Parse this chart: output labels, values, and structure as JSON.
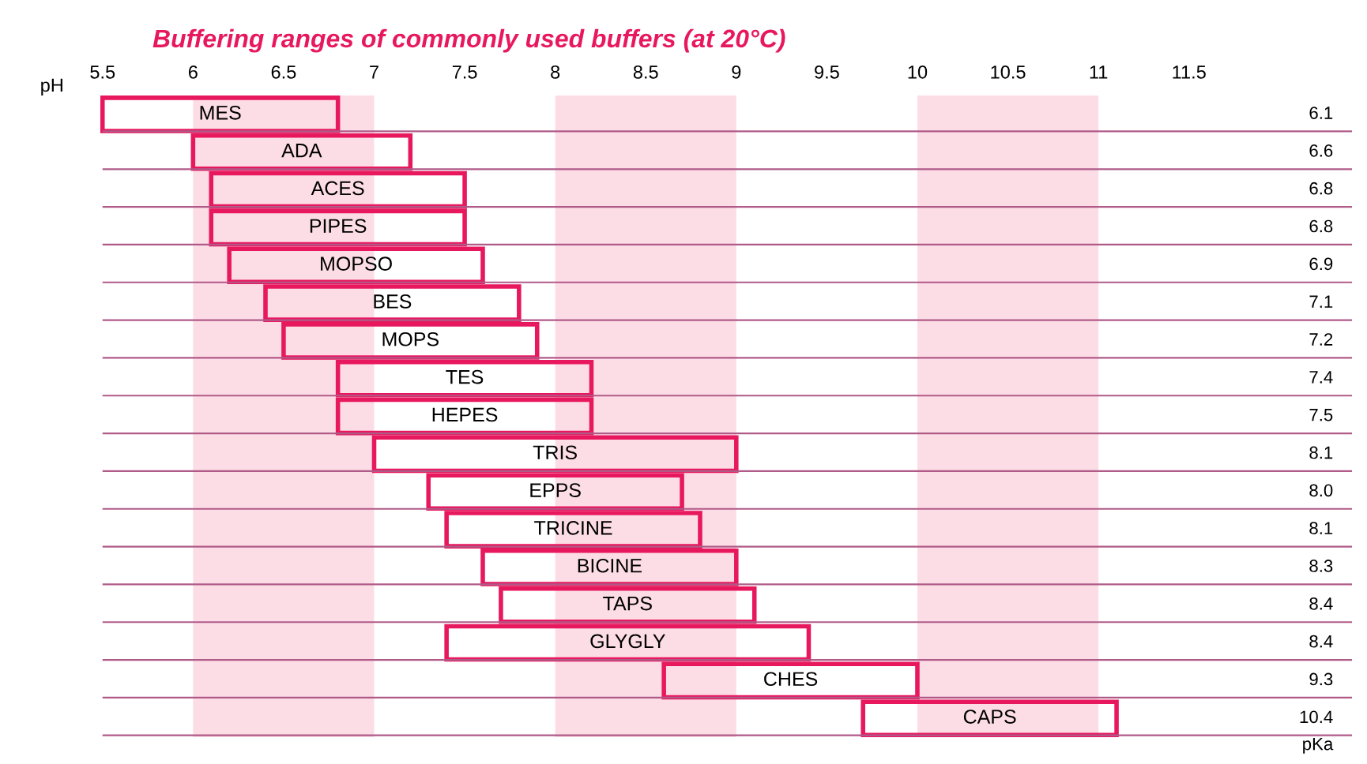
{
  "chart_data": {
    "type": "bar",
    "orientation": "horizontal",
    "title": "Buffering ranges of commonly used buffers (at 20°C)",
    "xlabel": "pH",
    "categories": [
      "MES",
      "ADA",
      "ACES",
      "PIPES",
      "MOPSO",
      "BES",
      "MOPS",
      "TES",
      "HEPES",
      "TRIS",
      "EPPS",
      "TRICINE",
      "BICINE",
      "TAPS",
      "GLYGLY",
      "CHES",
      "CAPS"
    ],
    "base": [
      5.5,
      6.0,
      6.1,
      6.1,
      6.2,
      6.4,
      6.5,
      6.8,
      6.8,
      7.0,
      7.3,
      7.4,
      7.6,
      7.7,
      7.4,
      8.6,
      9.7
    ],
    "values": [
      1.3,
      1.2,
      1.4,
      1.4,
      1.4,
      1.4,
      1.4,
      1.4,
      1.4,
      2.0,
      1.4,
      1.4,
      1.4,
      1.4,
      2.0,
      1.4,
      1.4
    ],
    "color": "#e8185f",
    "xlim": [
      5.5,
      12.4
    ],
    "xticks": [
      5.5,
      6,
      6.5,
      7,
      7.5,
      8,
      8.5,
      9,
      9.5,
      10,
      10.5,
      11,
      11.5
    ],
    "bands": [
      {
        "axis": "x",
        "from": 6,
        "to": 7,
        "color": "#fcdde6"
      },
      {
        "axis": "x",
        "from": 8,
        "to": 9,
        "color": "#fcdde6"
      },
      {
        "axis": "x",
        "from": 10,
        "to": 11,
        "color": "#fcdde6"
      }
    ],
    "grid": "y",
    "annotations": [
      "6.1",
      "6.6",
      "6.8",
      "6.8",
      "6.9",
      "7.1",
      "7.2",
      "7.4",
      "7.5",
      "8.1",
      "8.0",
      "8.1",
      "8.3",
      "8.4",
      "8.4",
      "9.3",
      "10.4",
      "pKa"
    ]
  }
}
